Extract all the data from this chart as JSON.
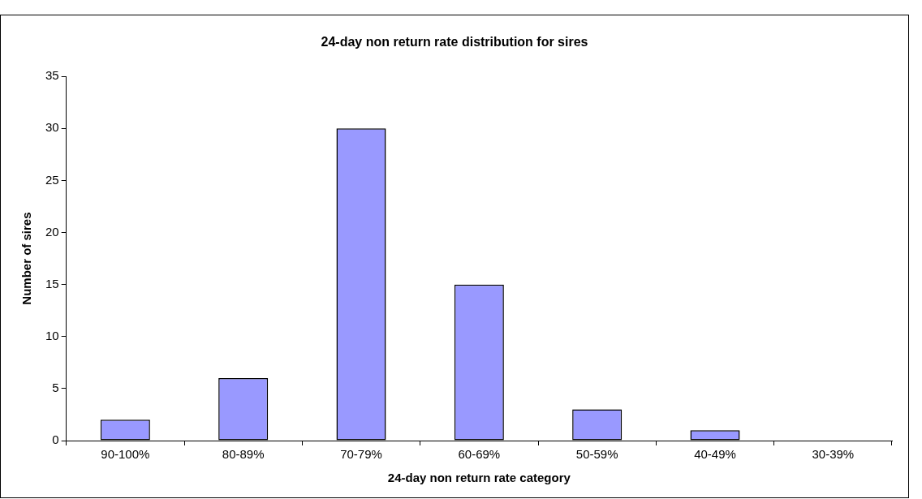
{
  "chart_data": {
    "type": "bar",
    "title": "24-day non return rate distribution for sires",
    "xlabel": "24-day non return rate category",
    "ylabel": "Number of sires",
    "categories": [
      "90-100%",
      "80-89%",
      "70-79%",
      "60-69%",
      "50-59%",
      "40-49%",
      "30-39%"
    ],
    "values": [
      2,
      6,
      30,
      15,
      3,
      1,
      0
    ],
    "color": "#9999ff",
    "ylim": [
      0,
      35
    ],
    "yticks": [
      0,
      5,
      10,
      15,
      20,
      25,
      30,
      35
    ],
    "grid": false,
    "legend": false
  }
}
